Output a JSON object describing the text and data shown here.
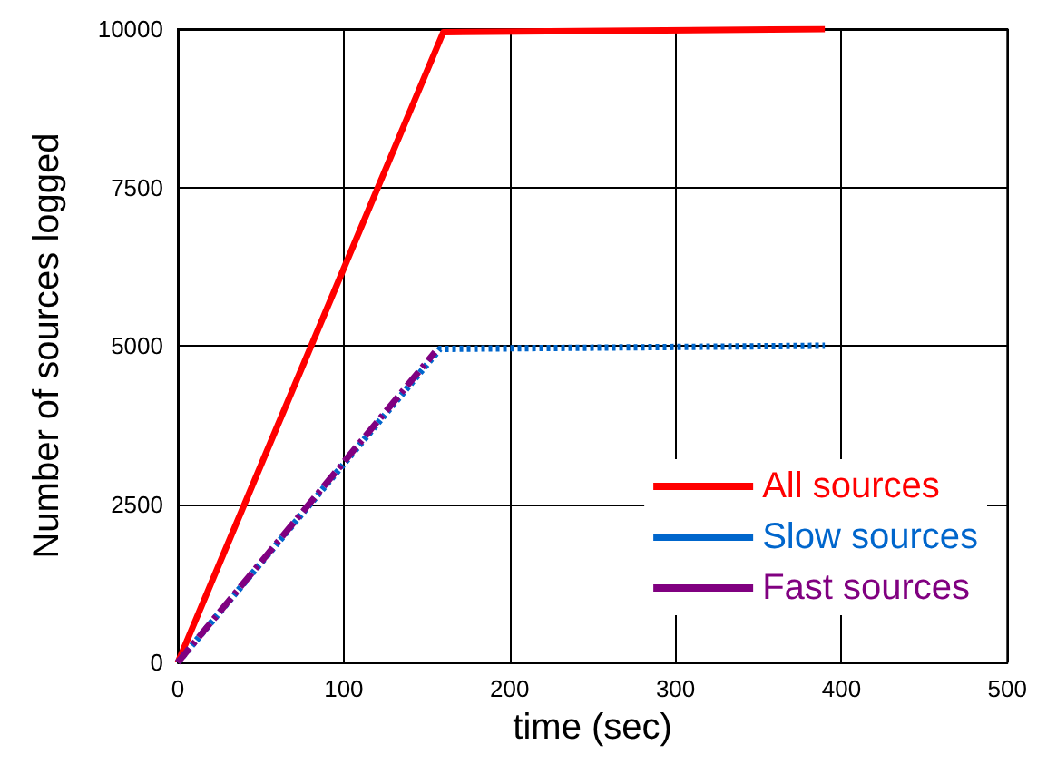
{
  "chart_data": {
    "type": "line",
    "xlabel": "time (sec)",
    "ylabel": "Number of sources logged",
    "xlim": [
      0,
      500
    ],
    "xticks": [
      0,
      100,
      200,
      300,
      400,
      500
    ],
    "ylim": [
      0,
      10000
    ],
    "yticks": [
      0,
      2500,
      5000,
      7500,
      10000
    ],
    "grid": true,
    "legend": "bottom right",
    "marker": "none",
    "series": [
      {
        "name": "All sources",
        "color": "#ff0000",
        "line_style": "solid",
        "x": [
          0,
          160,
          390
        ],
        "values": [
          0,
          9950,
          10000
        ]
      },
      {
        "name": "Slow sources",
        "color": "#0066cc",
        "line_style": "dotted",
        "x": [
          0,
          158,
          390
        ],
        "values": [
          0,
          4950,
          5000
        ]
      },
      {
        "name": "Fast sources",
        "color": "#800080",
        "line_style": "dashed",
        "x": [
          0,
          155
        ],
        "values": [
          0,
          4900
        ]
      }
    ]
  }
}
